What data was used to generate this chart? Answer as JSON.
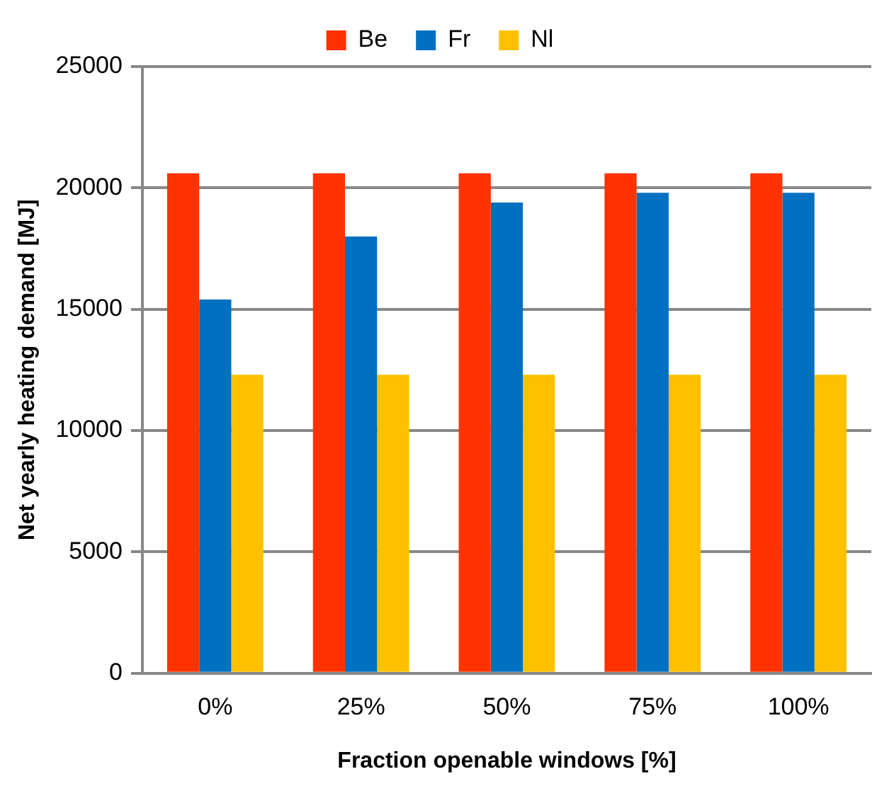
{
  "chart_data": {
    "type": "bar",
    "xlabel": "Fraction openable windows [%]",
    "ylabel": "Net yearly heating demand [MJ]",
    "categories": [
      "0%",
      "25%",
      "50%",
      "75%",
      "100%"
    ],
    "series": [
      {
        "name": "Be",
        "color": "#ff3300",
        "values": [
          20600,
          20600,
          20600,
          20600,
          20600
        ]
      },
      {
        "name": "Fr",
        "color": "#0070c0",
        "values": [
          15400,
          18000,
          19400,
          19800,
          19800
        ]
      },
      {
        "name": "Nl",
        "color": "#ffc000",
        "values": [
          12300,
          12300,
          12300,
          12300,
          12300
        ]
      }
    ],
    "ylim": [
      0,
      25000
    ],
    "yticks": [
      0,
      5000,
      10000,
      15000,
      20000,
      25000
    ],
    "grid": "y",
    "legend": "top"
  }
}
